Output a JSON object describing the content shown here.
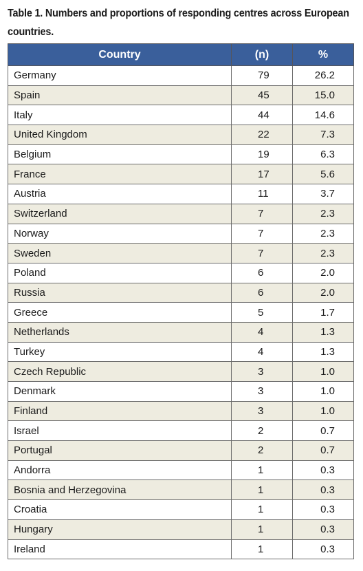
{
  "caption": "Table 1. Numbers and proportions of responding centres across European countries.",
  "headers": {
    "country": "Country",
    "n": "(n)",
    "pct": "%"
  },
  "rows": [
    {
      "country": "Germany",
      "n": "79",
      "pct": "26.2"
    },
    {
      "country": "Spain",
      "n": "45",
      "pct": "15.0"
    },
    {
      "country": "Italy",
      "n": "44",
      "pct": "14.6"
    },
    {
      "country": "United Kingdom",
      "n": "22",
      "pct": "7.3"
    },
    {
      "country": "Belgium",
      "n": "19",
      "pct": "6.3"
    },
    {
      "country": "France",
      "n": "17",
      "pct": "5.6"
    },
    {
      "country": "Austria",
      "n": "11",
      "pct": "3.7"
    },
    {
      "country": "Switzerland",
      "n": "7",
      "pct": "2.3"
    },
    {
      "country": "Norway",
      "n": "7",
      "pct": "2.3"
    },
    {
      "country": "Sweden",
      "n": "7",
      "pct": "2.3"
    },
    {
      "country": "Poland",
      "n": "6",
      "pct": "2.0"
    },
    {
      "country": "Russia",
      "n": "6",
      "pct": "2.0"
    },
    {
      "country": "Greece",
      "n": "5",
      "pct": "1.7"
    },
    {
      "country": "Netherlands",
      "n": "4",
      "pct": "1.3"
    },
    {
      "country": "Turkey",
      "n": "4",
      "pct": "1.3"
    },
    {
      "country": "Czech Republic",
      "n": "3",
      "pct": "1.0"
    },
    {
      "country": "Denmark",
      "n": "3",
      "pct": "1.0"
    },
    {
      "country": "Finland",
      "n": "3",
      "pct": "1.0"
    },
    {
      "country": "Israel",
      "n": "2",
      "pct": "0.7"
    },
    {
      "country": "Portugal",
      "n": "2",
      "pct": "0.7"
    },
    {
      "country": "Andorra",
      "n": "1",
      "pct": "0.3"
    },
    {
      "country": "Bosnia and Herzegovina",
      "n": "1",
      "pct": "0.3"
    },
    {
      "country": "Croatia",
      "n": "1",
      "pct": "0.3"
    },
    {
      "country": "Hungary",
      "n": "1",
      "pct": "0.3"
    },
    {
      "country": "Ireland",
      "n": "1",
      "pct": "0.3"
    }
  ],
  "colors": {
    "header_bg": "#3a5f9b",
    "row_alt_bg": "#eeece0",
    "row_bg": "#ffffff"
  }
}
